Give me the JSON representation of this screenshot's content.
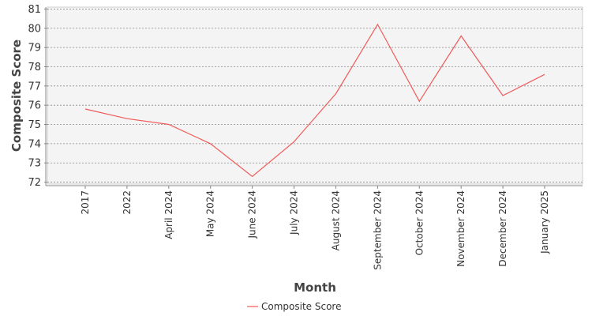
{
  "chart_data": {
    "type": "line",
    "title": "",
    "xlabel": "Month",
    "ylabel": "Composite Score",
    "categories": [
      "2017",
      "2022",
      "April 2024",
      "May 2024",
      "June 2024",
      "July 2024",
      "August 2024",
      "September 2024",
      "October 2024",
      "November 2024",
      "December 2024",
      "January 2025"
    ],
    "series": [
      {
        "name": "Composite Score",
        "color": "#f05a5a",
        "values": [
          75.8,
          75.3,
          75.0,
          74.0,
          72.3,
          74.1,
          76.6,
          80.2,
          76.2,
          79.6,
          76.5,
          77.6
        ]
      }
    ],
    "yticks": [
      72,
      73,
      74,
      75,
      76,
      77,
      78,
      79,
      80,
      81
    ],
    "ylim": [
      71.9,
      81.1
    ],
    "grid": true,
    "legend_position": "bottom-center",
    "plot_background": "#f4f4f4"
  }
}
